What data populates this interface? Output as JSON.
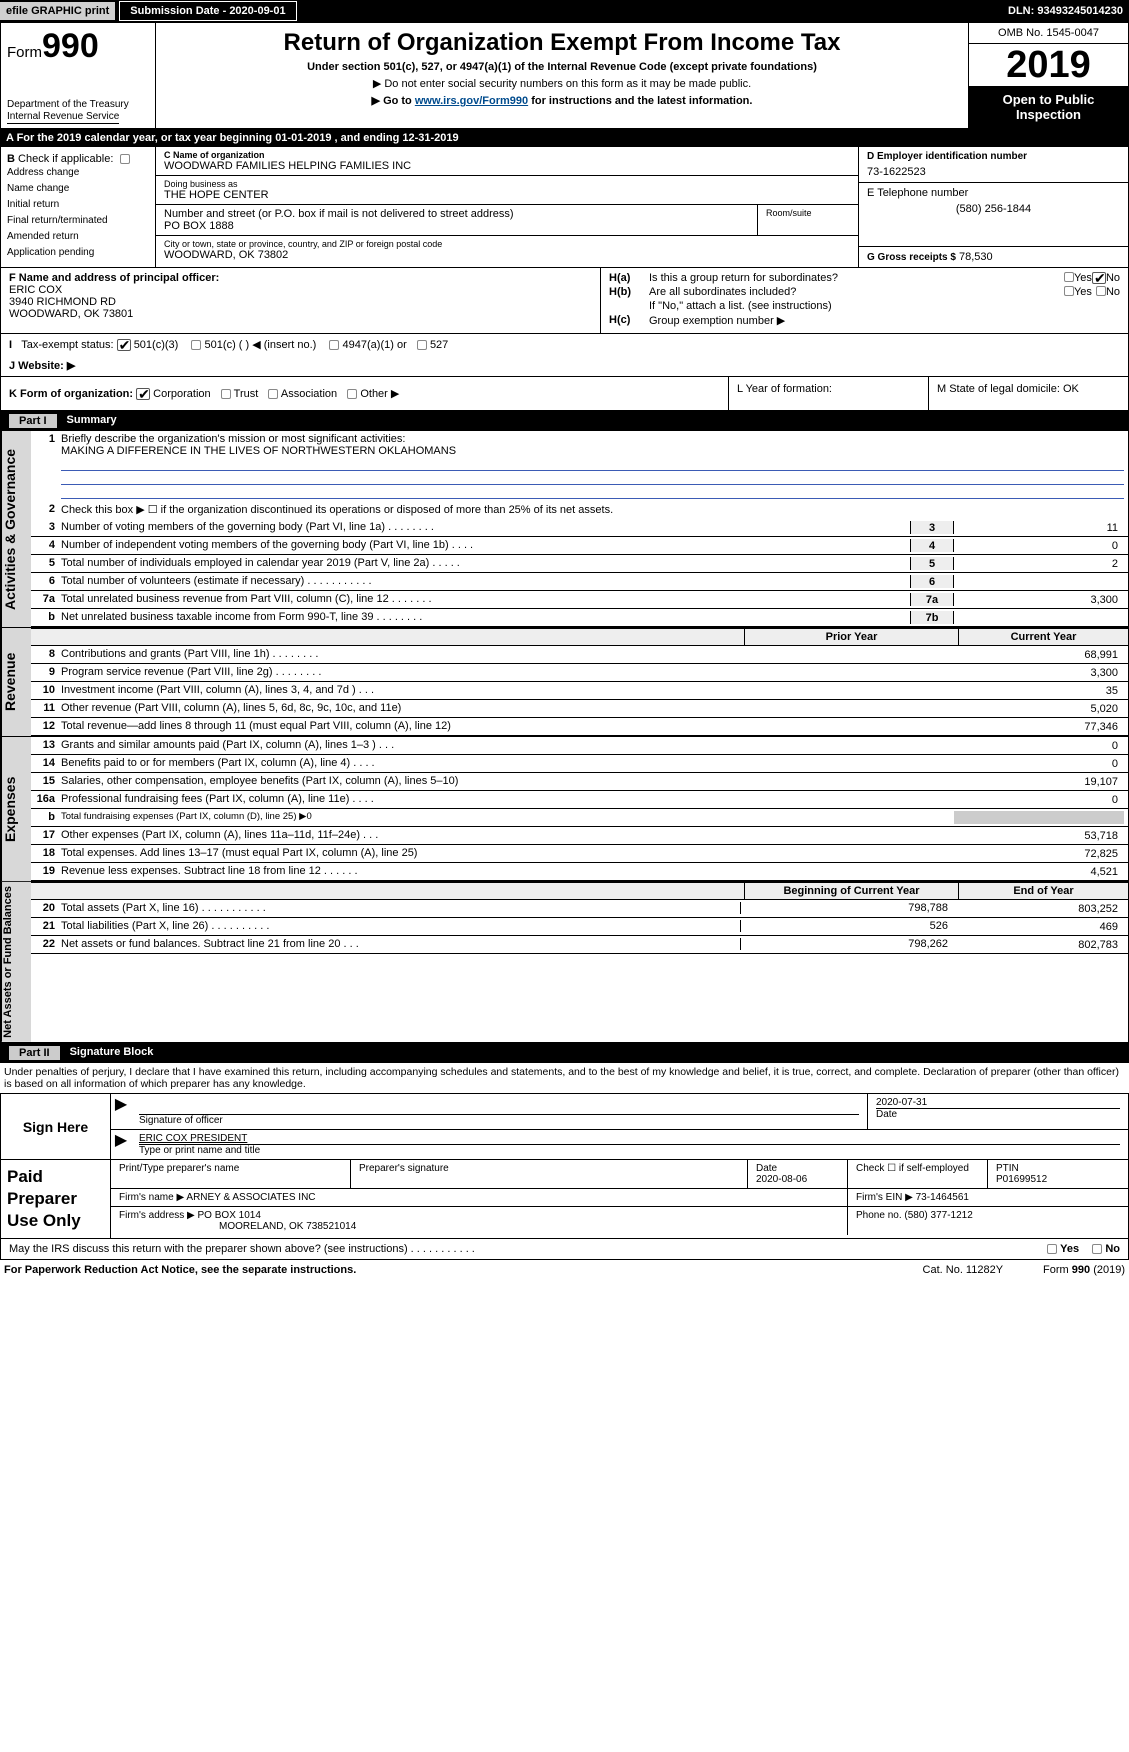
{
  "topbar": {
    "efile": "efile GRAPHIC  print",
    "submission": "Submission Date - 2020-09-01",
    "dln": "DLN: 93493245014230"
  },
  "header": {
    "form_prefix": "Form",
    "form_number": "990",
    "title": "Return of Organization Exempt From Income Tax",
    "subtitle1": "Under section 501(c), 527, or 4947(a)(1) of the Internal Revenue Code (except private foundations)",
    "subtitle2": "▶ Do not enter social security numbers on this form as it may be made public.",
    "subtitle3_a": "▶ Go to ",
    "subtitle3_link": "www.irs.gov/Form990",
    "subtitle3_b": " for instructions and the latest information.",
    "dept1": "Department of the Treasury",
    "dept2": "Internal Revenue Service",
    "omb": "OMB No. 1545-0047",
    "year": "2019",
    "open": "Open to Public Inspection"
  },
  "row_a": "A   For the 2019 calendar year, or tax year beginning 01-01-2019       , and ending 12-31-2019",
  "section_b": {
    "label": "Check if applicable:",
    "items": [
      "Address change",
      "Name change",
      "Initial return",
      "Final return/terminated",
      "Amended return",
      "Application pending"
    ]
  },
  "section_c": {
    "c_label": "C Name of organization",
    "c_name": "WOODWARD FAMILIES HELPING FAMILIES INC",
    "dba_label": "Doing business as",
    "dba": "THE HOPE CENTER",
    "addr_label": "Number and street (or P.O. box if mail is not delivered to street address)",
    "addr": "PO BOX 1888",
    "room_label": "Room/suite",
    "city_label": "City or town, state or province, country, and ZIP or foreign postal code",
    "city": "WOODWARD, OK  73802"
  },
  "section_d": {
    "label": "D Employer identification number",
    "val": "73-1622523"
  },
  "section_e": {
    "label": "E Telephone number",
    "val": "(580) 256-1844"
  },
  "section_g": {
    "label": "G Gross receipts $",
    "val": "78,530"
  },
  "section_f": {
    "label": "F  Name and address of principal officer:",
    "name": "ERIC COX",
    "addr1": "3940 RICHMOND RD",
    "addr2": "WOODWARD, OK  73801"
  },
  "section_h": {
    "ha": "Is this a group return for subordinates?",
    "hb": "Are all subordinates included?",
    "hb2": "If \"No,\" attach a list. (see instructions)",
    "hc": "Group exemption number ▶",
    "yes": "Yes",
    "no": "No"
  },
  "section_i": {
    "label": "Tax-exempt status:",
    "o1": "501(c)(3)",
    "o2": "501(c) (  ) ◀ (insert no.)",
    "o3": "4947(a)(1) or",
    "o4": "527"
  },
  "section_j": {
    "label": "J   Website: ▶"
  },
  "section_k": {
    "label": "K Form of organization:",
    "o1": "Corporation",
    "o2": "Trust",
    "o3": "Association",
    "o4": "Other ▶"
  },
  "section_l": {
    "label": "L Year of formation:"
  },
  "section_m": {
    "label": "M State of legal domicile: OK"
  },
  "part1": {
    "header": "Summary",
    "part": "Part I",
    "l1_label": "Briefly describe the organization's mission or most significant activities:",
    "l1_text": "MAKING A DIFFERENCE IN THE LIVES OF NORTHWESTERN OKLAHOMANS",
    "l2": "Check this box ▶ ☐  if the organization discontinued its operations or disposed of more than 25% of its net assets.",
    "rows_ag": [
      {
        "n": "3",
        "t": "Number of voting members of the governing body (Part VI, line 1a)    .     .     .     .     .     .     .     .",
        "b": "3",
        "v": "11"
      },
      {
        "n": "4",
        "t": "Number of independent voting members of the governing body (Part VI, line 1b)   .    .    .    .",
        "b": "4",
        "v": "0"
      },
      {
        "n": "5",
        "t": "Total number of individuals employed in calendar year 2019 (Part V, line 2a)   .    .    .    .    .",
        "b": "5",
        "v": "2"
      },
      {
        "n": "6",
        "t": "Total number of volunteers (estimate if necessary)   .    .    .    .    .    .    .    .    .    .    .",
        "b": "6",
        "v": ""
      },
      {
        "n": "7a",
        "t": "Total unrelated business revenue from Part VIII, column (C), line 12   .    .    .    .    .    .    .",
        "b": "7a",
        "v": "3,300"
      },
      {
        "n": "b",
        "t": "Net unrelated business taxable income from Form 990-T, line 39   .    .    .    .    .    .    .    .",
        "b": "7b",
        "v": ""
      }
    ],
    "hdr_prior": "Prior Year",
    "hdr_curr": "Current Year",
    "rows_rev": [
      {
        "n": "8",
        "t": "Contributions and grants (Part VIII, line 1h)   .     .     .     .     .     .     .     .",
        "p": "",
        "c": "68,991"
      },
      {
        "n": "9",
        "t": "Program service revenue (Part VIII, line 2g)    .     .     .     .     .     .     .     .",
        "p": "",
        "c": "3,300"
      },
      {
        "n": "10",
        "t": "Investment income (Part VIII, column (A), lines 3, 4, and 7d )    .     .     .",
        "p": "",
        "c": "35"
      },
      {
        "n": "11",
        "t": "Other revenue (Part VIII, column (A), lines 5, 6d, 8c, 9c, 10c, and 11e)",
        "p": "",
        "c": "5,020"
      },
      {
        "n": "12",
        "t": "Total revenue—add lines 8 through 11 (must equal Part VIII, column (A), line 12)",
        "p": "",
        "c": "77,346"
      }
    ],
    "rows_exp": [
      {
        "n": "13",
        "t": "Grants and similar amounts paid (Part IX, column (A), lines 1–3 )   .     .     .",
        "p": "",
        "c": "0"
      },
      {
        "n": "14",
        "t": "Benefits paid to or for members (Part IX, column (A), line 4)  .     .     .     .",
        "p": "",
        "c": "0"
      },
      {
        "n": "15",
        "t": "Salaries, other compensation, employee benefits (Part IX, column (A), lines 5–10)",
        "p": "",
        "c": "19,107"
      },
      {
        "n": "16a",
        "t": "Professional fundraising fees (Part IX, column (A), line 11e)   .     .     .     .",
        "p": "",
        "c": "0"
      },
      {
        "n": "b",
        "t": "Total fundraising expenses (Part IX, column (D), line 25) ▶0",
        "p": "—",
        "c": "—"
      },
      {
        "n": "17",
        "t": "Other expenses (Part IX, column (A), lines 11a–11d, 11f–24e)   .     .     .",
        "p": "",
        "c": "53,718"
      },
      {
        "n": "18",
        "t": "Total expenses. Add lines 13–17 (must equal Part IX, column (A), line 25)",
        "p": "",
        "c": "72,825"
      },
      {
        "n": "19",
        "t": "Revenue less expenses. Subtract line 18 from line 12  .     .     .     .     .     .",
        "p": "",
        "c": "4,521"
      }
    ],
    "hdr_boy": "Beginning of Current Year",
    "hdr_eoy": "End of Year",
    "rows_na": [
      {
        "n": "20",
        "t": "Total assets (Part X, line 16)  .      .      .      .      .      .      .      .      .      .      .",
        "p": "798,788",
        "c": "803,252"
      },
      {
        "n": "21",
        "t": "Total liabilities (Part X, line 26)    .      .      .      .      .      .      .      .      .      .",
        "p": "526",
        "c": "469"
      },
      {
        "n": "22",
        "t": "Net assets or fund balances. Subtract line 21 from line 20   .     .     .",
        "p": "798,262",
        "c": "802,783"
      }
    ],
    "sidebars": {
      "ag": "Activities & Governance",
      "rev": "Revenue",
      "exp": "Expenses",
      "na": "Net Assets or Fund Balances"
    }
  },
  "part2": {
    "part": "Part II",
    "header": "Signature Block",
    "perjury": "Under penalties of perjury, I declare that I have examined this return, including accompanying schedules and statements, and to the best of my knowledge and belief, it is true, correct, and complete. Declaration of preparer (other than officer) is based on all information of which preparer has any knowledge."
  },
  "sign": {
    "label": "Sign Here",
    "sig_officer": "Signature of officer",
    "date": "2020-07-31",
    "date_lab": "Date",
    "name": "ERIC COX  PRESIDENT",
    "name_lab": "Type or print name and title"
  },
  "paid": {
    "label": "Paid Preparer Use Only",
    "h_print": "Print/Type preparer's name",
    "h_sig": "Preparer's signature",
    "h_date": "Date",
    "date": "2020-08-06",
    "h_check": "Check ☐ if self-employed",
    "h_ptin": "PTIN",
    "ptin": "P01699512",
    "firm_name_lab": "Firm's name    ▶",
    "firm_name": "ARNEY & ASSOCIATES INC",
    "firm_ein_lab": "Firm's EIN ▶",
    "firm_ein": "73-1464561",
    "firm_addr_lab": "Firm's address ▶",
    "firm_addr1": "PO BOX 1014",
    "firm_addr2": "MOORELAND, OK  738521014",
    "phone_lab": "Phone no.",
    "phone": "(580) 377-1212"
  },
  "discuss": {
    "q": "May the IRS discuss this return with the preparer shown above? (see instructions)   .     .     .     .     .     .     .     .     .     .     .",
    "yes": "Yes",
    "no": "No"
  },
  "footer": {
    "left": "For Paperwork Reduction Act Notice, see the separate instructions.",
    "mid": "Cat. No. 11282Y",
    "right": "Form 990 (2019)"
  }
}
